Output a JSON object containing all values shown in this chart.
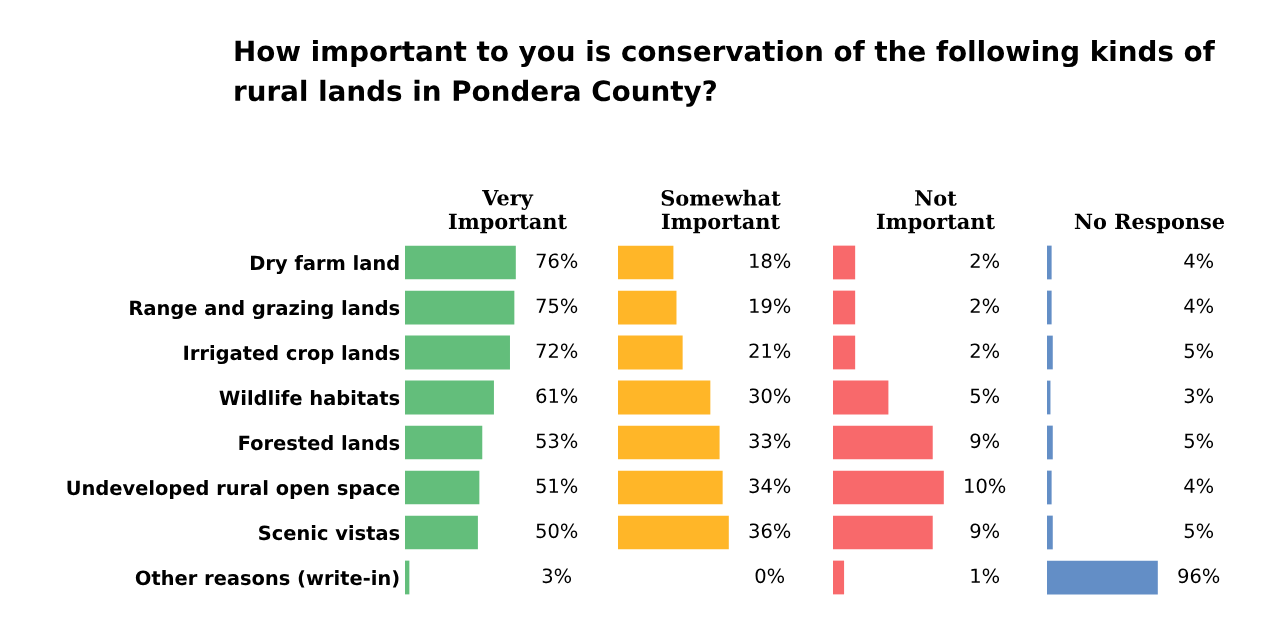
{
  "chart_data": [
    {
      "type": "bar",
      "orientation": "horizontal",
      "title": "How important to you is conservation of the following kinds of rural lands in Pondera County?",
      "subtitle": "Very\nImportant",
      "tick_labels": "y",
      "categories": [
        "Dry farm land",
        "Range and grazing lands",
        "Irrigated crop lands",
        "Wildlife habitats",
        "Forested lands",
        "Undeveloped rural open space",
        "Scenic vistas",
        "Other reasons (write-in)"
      ],
      "color": "#63be7b",
      "values": [
        76,
        75,
        72,
        61,
        53,
        51,
        50,
        3
      ],
      "value_labels": [
        "76%",
        "75%",
        "72%",
        "61%",
        "53%",
        "51%",
        "50%",
        "3%"
      ]
    },
    {
      "type": "bar",
      "orientation": "horizontal",
      "title": "Somewhat\nImportant",
      "tick_labels": false,
      "categories": [
        null,
        null,
        null,
        null,
        null,
        null,
        null,
        null
      ],
      "color": "#ffb628",
      "values": [
        18,
        19,
        21,
        30,
        33,
        34,
        36,
        0
      ],
      "value_labels": [
        "18%",
        "19%",
        "21%",
        "30%",
        "33%",
        "34%",
        "36%",
        "0%"
      ]
    },
    {
      "type": "bar",
      "orientation": "horizontal",
      "title": "Not\nImportant",
      "tick_labels": false,
      "categories": [
        null,
        null,
        null,
        null,
        null,
        null,
        null,
        null
      ],
      "color": "#f8696b",
      "values": [
        2,
        2,
        2,
        5,
        9,
        10,
        9,
        1
      ],
      "value_labels": [
        "2%",
        "2%",
        "2%",
        "5%",
        "9%",
        "10%",
        "9%",
        "1%"
      ]
    },
    {
      "type": "bar",
      "orientation": "horizontal",
      "title": "No Response",
      "tick_labels": false,
      "categories": [
        null,
        null,
        null,
        null,
        null,
        null,
        null,
        null
      ],
      "color": "#638ec6",
      "values": [
        4,
        4,
        5,
        3,
        5,
        4,
        5,
        96
      ],
      "value_labels": [
        "4%",
        "4%",
        "5%",
        "3%",
        "5%",
        "4%",
        "5%",
        "96%"
      ]
    }
  ]
}
